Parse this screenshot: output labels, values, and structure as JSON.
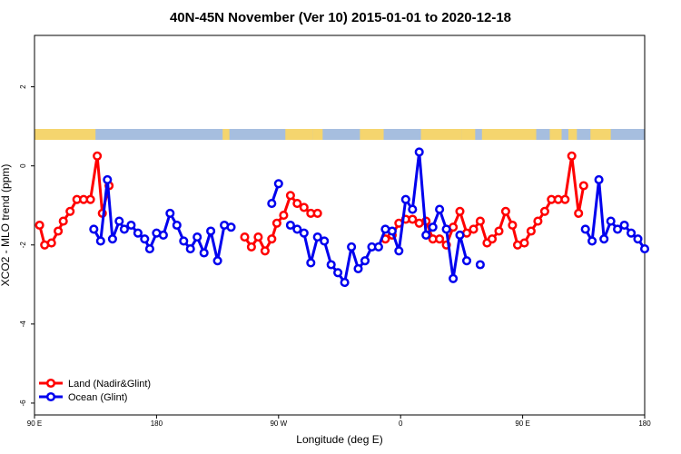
{
  "chart_data": {
    "type": "line",
    "title": "40N-45N November (Ver 10)   2015-01-01 to 2020-12-18",
    "xlabel": "Longitude (deg E)",
    "ylabel": "XCO2 - MLO trend (ppm)",
    "xlim": [
      90,
      450
    ],
    "ylim": [
      -6.3,
      3.3
    ],
    "x_ticks": [
      {
        "value": 90,
        "label": "90 E"
      },
      {
        "value": 162,
        "label": "180"
      },
      {
        "value": 234,
        "label": "90 W"
      },
      {
        "value": 306,
        "label": "0"
      },
      {
        "value": 378,
        "label": "90 E"
      },
      {
        "value": 450,
        "label": "180"
      }
    ],
    "y_ticks": [
      {
        "value": 2,
        "label": "2"
      },
      {
        "value": 0,
        "label": "0"
      },
      {
        "value": -2,
        "label": "-2"
      },
      {
        "value": -4,
        "label": "-4"
      },
      {
        "value": -6,
        "label": "-6"
      }
    ],
    "legend": {
      "position": "bottom-left"
    },
    "land_ocean_bar": {
      "land_color": "#f5d56e",
      "ocean_color": "#a6bedf",
      "land_ranges": [
        [
          90,
          126
        ],
        [
          201,
          205
        ],
        [
          238,
          254
        ],
        [
          254,
          260
        ],
        [
          282,
          296
        ],
        [
          318,
          342
        ],
        [
          342,
          350
        ],
        [
          354,
          386
        ],
        [
          394,
          401
        ],
        [
          405,
          410
        ],
        [
          418,
          430
        ]
      ]
    },
    "series": [
      {
        "name": "Land (Nadir&Glint)",
        "color": "#ff0000",
        "x": [
          93,
          96,
          100,
          104,
          107,
          111,
          115,
          119,
          123,
          127,
          130,
          134,
          136,
          214,
          218,
          222,
          226,
          230,
          233,
          237,
          241,
          245,
          249,
          253,
          257,
          261,
          297,
          301,
          305,
          309,
          313,
          317,
          321,
          325,
          329,
          333,
          337,
          341,
          345,
          349,
          353,
          357,
          360,
          364,
          368,
          372,
          375,
          379,
          383,
          387,
          391,
          395,
          399,
          403,
          407,
          411,
          414,
          418,
          422,
          426,
          428
        ],
        "y": [
          -1.5,
          -2.0,
          -1.95,
          -1.65,
          -1.4,
          -1.15,
          -0.85,
          -0.85,
          -0.85,
          0.25,
          -1.2,
          -0.5,
          null,
          -1.8,
          -2.05,
          -1.8,
          -2.15,
          -1.85,
          -1.45,
          -1.25,
          -0.75,
          -0.95,
          -1.05,
          -1.2,
          -1.2,
          null,
          -1.85,
          -1.75,
          -1.45,
          -1.35,
          -1.35,
          -1.45,
          -1.4,
          -1.85,
          -1.85,
          -2.0,
          -1.55,
          -1.15,
          -1.7,
          -1.6,
          -1.4,
          -1.95,
          -1.85,
          -1.65,
          -1.15,
          -1.5,
          -2.0,
          -1.95,
          -1.65,
          -1.4,
          -1.15,
          -0.85,
          -0.85,
          -0.85,
          0.25,
          -1.2,
          -0.5,
          null,
          null,
          null,
          null
        ]
      },
      {
        "name": "Ocean (Glint)",
        "color": "#0000ee",
        "x": [
          125,
          129,
          133,
          136,
          140,
          143,
          147,
          151,
          155,
          158,
          162,
          166,
          170,
          174,
          178,
          182,
          186,
          190,
          194,
          198,
          202,
          206,
          210,
          230,
          234,
          237,
          241,
          245,
          249,
          253,
          257,
          261,
          265,
          269,
          273,
          277,
          281,
          285,
          289,
          293,
          297,
          301,
          305,
          309,
          313,
          317,
          321,
          325,
          329,
          333,
          337,
          341,
          345,
          349,
          353,
          357,
          415,
          419,
          423,
          426,
          430,
          434,
          438,
          442,
          446,
          450
        ],
        "y": [
          -1.6,
          -1.9,
          -0.35,
          -1.85,
          -1.4,
          -1.6,
          -1.5,
          -1.7,
          -1.85,
          -2.1,
          -1.7,
          -1.75,
          -1.2,
          -1.5,
          -1.9,
          -2.1,
          -1.8,
          -2.2,
          -1.65,
          -2.4,
          -1.5,
          -1.55,
          null,
          -0.95,
          -0.45,
          null,
          -1.5,
          -1.6,
          -1.7,
          -2.45,
          -1.8,
          -1.9,
          -2.5,
          -2.7,
          -2.95,
          -2.05,
          -2.6,
          -2.4,
          -2.05,
          -2.05,
          -1.6,
          -1.65,
          -2.15,
          -0.85,
          -1.1,
          0.35,
          -1.75,
          -1.55,
          -1.1,
          -1.6,
          -2.85,
          -1.75,
          -2.4,
          null,
          -2.5,
          null,
          -1.6,
          -1.9,
          -0.35,
          -1.85,
          -1.4,
          -1.6,
          -1.5,
          -1.7,
          -1.85,
          -2.1
        ]
      }
    ]
  }
}
